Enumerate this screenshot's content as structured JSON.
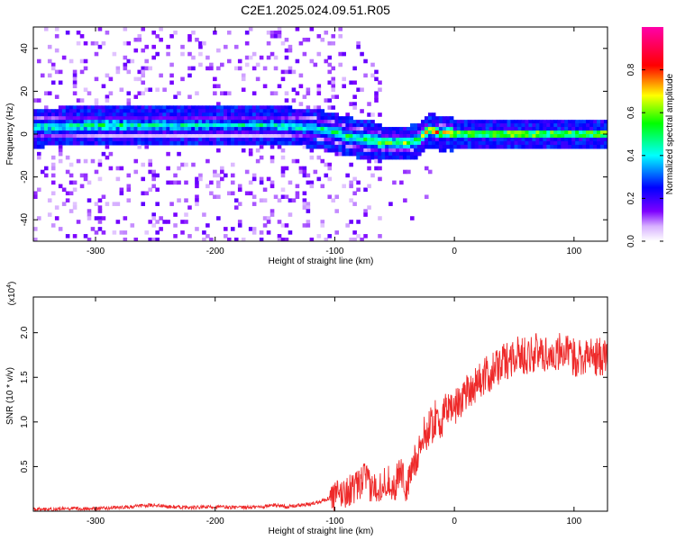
{
  "title": "C2E1.2025.024.09.51.R05",
  "chart_data": [
    {
      "type": "heatmap",
      "xlabel": "Height of straight line (km)",
      "ylabel": "Frequency (Hz)",
      "xlim": [
        -352,
        128
      ],
      "ylim": [
        -50,
        50
      ],
      "xticks": [
        -300,
        -200,
        -100,
        0,
        100
      ],
      "yticks": [
        -40,
        -20,
        0,
        20,
        40
      ],
      "grid": false,
      "colorbar": {
        "label": "Normalized spectral amplitude",
        "range": [
          0,
          1
        ],
        "ticks": [
          0.0,
          0.2,
          0.4,
          0.6,
          0.8
        ],
        "colormap": [
          "#ffffff",
          "#7d00ff",
          "#0000ff",
          "#00ffff",
          "#00ff00",
          "#ffff00",
          "#ff0000",
          "#ff00aa"
        ]
      },
      "ridge": {
        "description_x": [
          -352,
          -300,
          -200,
          -150,
          -120,
          -100,
          -90,
          -80,
          -70,
          -60,
          -50,
          -40,
          -30,
          -25,
          -20,
          -15,
          -10,
          -5,
          0,
          50,
          100,
          128
        ],
        "center_freq_hz": [
          3,
          4,
          4,
          4,
          3,
          1,
          -1,
          -2,
          -3,
          -4,
          -4,
          -4,
          -3,
          0,
          2,
          1,
          0,
          1,
          0,
          0,
          0,
          0
        ],
        "peak_amplitude": [
          0.55,
          0.6,
          0.5,
          0.55,
          0.55,
          0.6,
          0.6,
          0.65,
          0.7,
          0.7,
          0.7,
          0.72,
          0.8,
          0.85,
          0.9,
          0.88,
          0.85,
          0.9,
          0.95,
          0.97,
          0.97,
          0.97
        ]
      }
    },
    {
      "type": "line",
      "xlabel": "Height of straight line (km)",
      "ylabel": "SNR (10 * v/v)",
      "yscale_label": "(x10",
      "yscale_exp": "4",
      "xlim": [
        -352,
        128
      ],
      "ylim": [
        0,
        2.4
      ],
      "xticks": [
        -300,
        -200,
        -100,
        0,
        100
      ],
      "yticks": [
        0.5,
        1.0,
        1.5,
        2.0
      ],
      "color": "#ee2a2a",
      "grid": false,
      "series": [
        {
          "x": [
            -352,
            -340,
            -320,
            -300,
            -280,
            -260,
            -250,
            -240,
            -220,
            -200,
            -180,
            -160,
            -150,
            -140,
            -120,
            -110,
            -100,
            -90,
            -80,
            -75,
            -70,
            -60,
            -55,
            -50,
            -45,
            -40,
            -35,
            -30,
            -25,
            -20,
            -15,
            -10,
            -5,
            0,
            10,
            20,
            30,
            40,
            50,
            60,
            70,
            80,
            90,
            100,
            110,
            120,
            128
          ],
          "y": [
            0.02,
            0.02,
            0.03,
            0.03,
            0.04,
            0.06,
            0.07,
            0.05,
            0.04,
            0.05,
            0.04,
            0.05,
            0.07,
            0.05,
            0.08,
            0.12,
            0.17,
            0.22,
            0.28,
            0.4,
            0.25,
            0.3,
            0.35,
            0.25,
            0.5,
            0.22,
            0.5,
            0.7,
            0.85,
            0.95,
            1.05,
            1.0,
            1.2,
            1.15,
            1.35,
            1.45,
            1.55,
            1.65,
            1.75,
            1.75,
            1.78,
            1.75,
            1.8,
            1.72,
            1.75,
            1.72,
            1.75
          ]
        }
      ]
    }
  ]
}
